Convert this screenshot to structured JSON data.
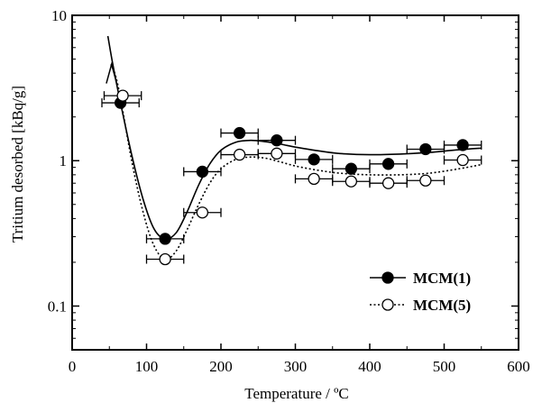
{
  "chart_data": {
    "type": "scatter",
    "xlabel": "Temperature / ºC",
    "ylabel": "Tritium desorbed [kBq/g]",
    "xlim": [
      0,
      600
    ],
    "ylim": [
      0.05,
      10
    ],
    "yscale": "log",
    "x_ticks": [
      "0",
      "100",
      "200",
      "300",
      "400",
      "500",
      "600"
    ],
    "y_ticks": [
      "0.1",
      "1",
      "10"
    ],
    "x_error": 25,
    "grid": false,
    "legend_position": "bottom-right",
    "series": [
      {
        "name": "MCM(1)",
        "marker": "filled-circle",
        "line_style": "solid",
        "color": "#000000",
        "x": [
          65,
          125,
          175,
          225,
          275,
          325,
          375,
          425,
          475,
          525
        ],
        "y": [
          2.5,
          0.29,
          0.84,
          1.55,
          1.38,
          1.02,
          0.88,
          0.95,
          1.2,
          1.28
        ],
        "fit_x": [
          48,
          55,
          65,
          80,
          95,
          110,
          125,
          140,
          155,
          170,
          185,
          200,
          220,
          240,
          260,
          280,
          300,
          330,
          360,
          400,
          440,
          480,
          520,
          550
        ],
        "fit_y": [
          7.2,
          4.5,
          2.5,
          1.1,
          0.55,
          0.34,
          0.29,
          0.32,
          0.45,
          0.68,
          0.95,
          1.18,
          1.34,
          1.38,
          1.35,
          1.3,
          1.24,
          1.17,
          1.12,
          1.1,
          1.11,
          1.14,
          1.19,
          1.22
        ]
      },
      {
        "name": "MCM(5)",
        "marker": "open-circle",
        "line_style": "dotted",
        "color": "#000000",
        "x": [
          68,
          125,
          175,
          225,
          275,
          325,
          375,
          425,
          475,
          525
        ],
        "y": [
          2.8,
          0.21,
          0.44,
          1.1,
          1.12,
          0.75,
          0.72,
          0.7,
          0.73,
          1.01
        ],
        "fit_x": [
          52,
          58,
          65,
          80,
          95,
          110,
          125,
          140,
          155,
          170,
          185,
          200,
          220,
          240,
          260,
          280,
          300,
          330,
          360,
          400,
          440,
          480,
          520,
          550
        ],
        "fit_y": [
          4.6,
          3.9,
          2.7,
          1.0,
          0.45,
          0.26,
          0.21,
          0.24,
          0.34,
          0.5,
          0.7,
          0.88,
          1.02,
          1.06,
          1.04,
          0.98,
          0.92,
          0.86,
          0.82,
          0.8,
          0.8,
          0.82,
          0.88,
          0.94
        ]
      }
    ]
  }
}
